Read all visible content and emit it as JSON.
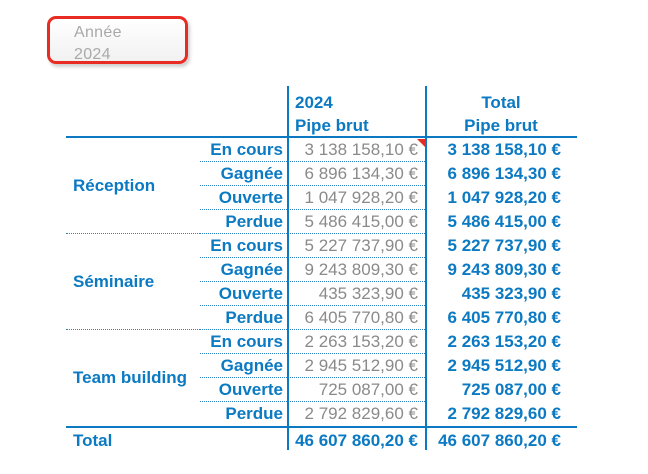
{
  "slicer": {
    "title": "Année",
    "value": "2024"
  },
  "table": {
    "col_2024_header": {
      "line1": "2024",
      "line2": "Pipe brut"
    },
    "col_total_header": {
      "line1": "Total",
      "line2": "Pipe brut"
    },
    "groups": [
      {
        "label": "Réception",
        "rows": [
          {
            "status": "En cours",
            "pipe_2024": "3 138 158,10 €",
            "pipe_total": "3 138 158,10 €"
          },
          {
            "status": "Gagnée",
            "pipe_2024": "6 896 134,30 €",
            "pipe_total": "6 896 134,30 €"
          },
          {
            "status": "Ouverte",
            "pipe_2024": "1 047 928,20 €",
            "pipe_total": "1 047 928,20 €"
          },
          {
            "status": "Perdue",
            "pipe_2024": "5 486 415,00 €",
            "pipe_total": "5 486 415,00 €"
          }
        ]
      },
      {
        "label": "Séminaire",
        "rows": [
          {
            "status": "En cours",
            "pipe_2024": "5 227 737,90 €",
            "pipe_total": "5 227 737,90 €"
          },
          {
            "status": "Gagnée",
            "pipe_2024": "9 243 809,30 €",
            "pipe_total": "9 243 809,30 €"
          },
          {
            "status": "Ouverte",
            "pipe_2024": "435 323,90 €",
            "pipe_total": "435 323,90 €"
          },
          {
            "status": "Perdue",
            "pipe_2024": "6 405 770,80 €",
            "pipe_total": "6 405 770,80 €"
          }
        ]
      },
      {
        "label": "Team building",
        "rows": [
          {
            "status": "En cours",
            "pipe_2024": "2 263 153,20 €",
            "pipe_total": "2 263 153,20 €"
          },
          {
            "status": "Gagnée",
            "pipe_2024": "2 945 512,90 €",
            "pipe_total": "2 945 512,90 €"
          },
          {
            "status": "Ouverte",
            "pipe_2024": "725 087,00 €",
            "pipe_total": "725 087,00 €"
          },
          {
            "status": "Perdue",
            "pipe_2024": "2 792 829,60 €",
            "pipe_total": "2 792 829,60 €"
          }
        ]
      }
    ],
    "total": {
      "label": "Total",
      "pipe_2024": "46 607 860,20 €",
      "pipe_total": "46 607 860,20 €"
    }
  },
  "colors": {
    "accent_blue": "#0b7ac2",
    "value_gray": "#8a8a8a",
    "slicer_text_gray": "#a9a9a9",
    "slicer_border_red": "#e92c23"
  }
}
